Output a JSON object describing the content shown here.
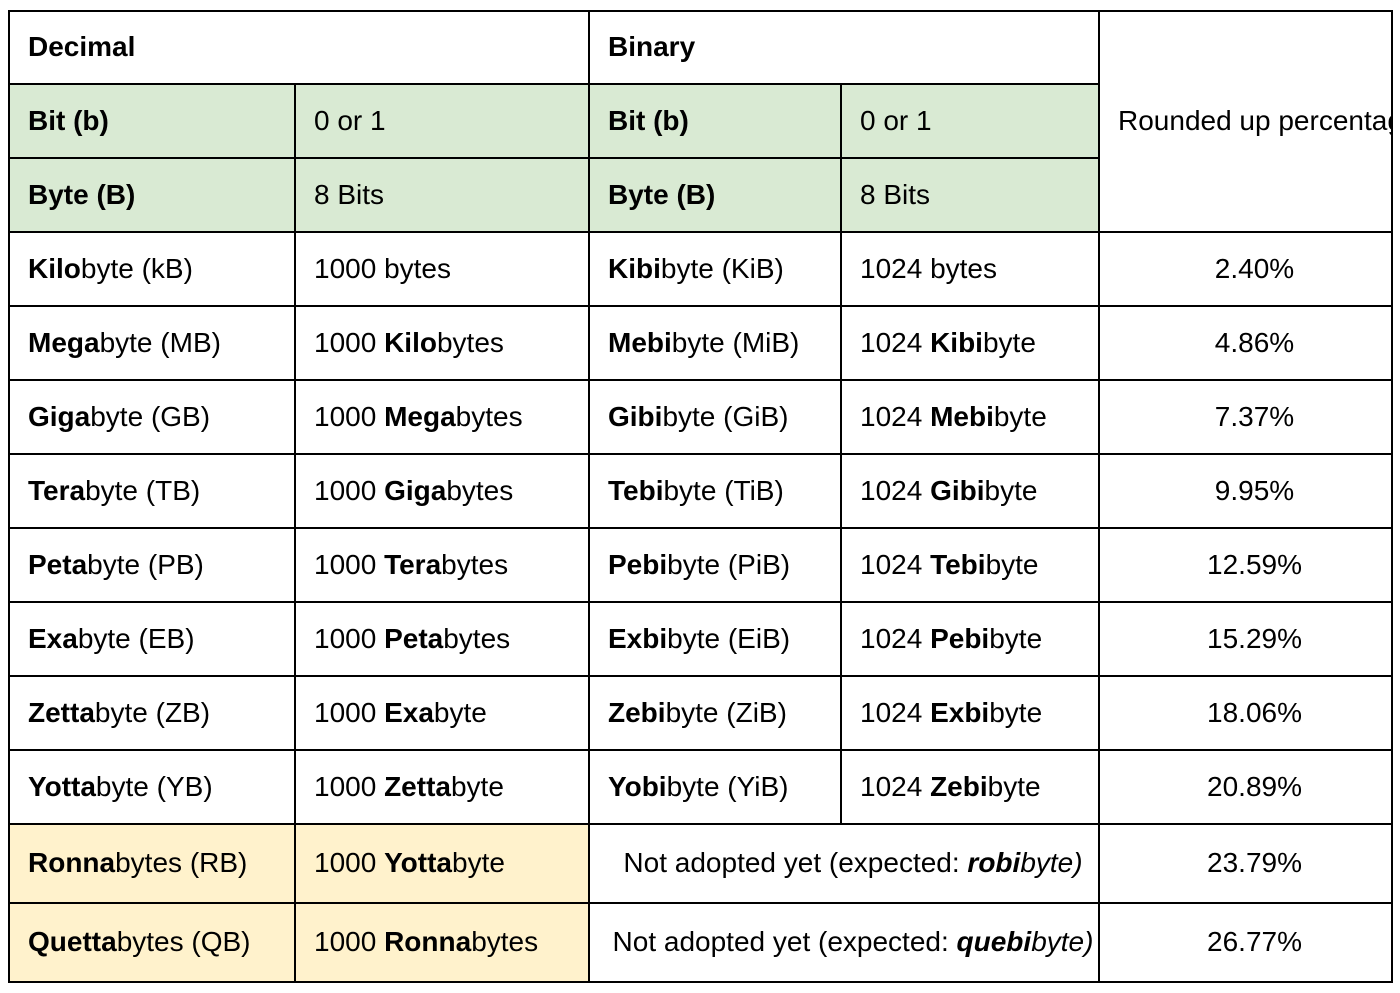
{
  "headers": {
    "decimal": "Decimal",
    "binary": "Binary",
    "difference": "Rounded up percentage value for the difference between decimal and binary values"
  },
  "basics": [
    {
      "dec_name": "Bit (b)",
      "dec_value": "0 or 1",
      "bin_name": "Bit (b)",
      "bin_value": "0 or 1"
    },
    {
      "dec_name": "Byte (B)",
      "dec_value": "8 Bits",
      "bin_name": "Byte (B)",
      "bin_value": "8 Bits"
    }
  ],
  "rows": [
    {
      "dec_prefix": "Kilo",
      "dec_suffix": "byte",
      "dec_abbr": " (kB)",
      "dec_val_num": "1000 bytes",
      "dec_val_prefix": "",
      "dec_val_suffix": "",
      "bin_prefix": "Kibi",
      "bin_suffix": "byte",
      "bin_abbr": " (KiB)",
      "bin_val_num": "1024 bytes",
      "bin_val_prefix": "",
      "bin_val_suffix": "",
      "diff": "2.40%"
    },
    {
      "dec_prefix": "Mega",
      "dec_suffix": "byte",
      "dec_abbr": " (MB)",
      "dec_val_num": "1000 ",
      "dec_val_prefix": "Kilo",
      "dec_val_suffix": "bytes",
      "bin_prefix": "Mebi",
      "bin_suffix": "byte",
      "bin_abbr": " (MiB)",
      "bin_val_num": "1024 ",
      "bin_val_prefix": "Kibi",
      "bin_val_suffix": "byte",
      "diff": "4.86%"
    },
    {
      "dec_prefix": "Giga",
      "dec_suffix": "byte",
      "dec_abbr": " (GB)",
      "dec_val_num": "1000 ",
      "dec_val_prefix": "Mega",
      "dec_val_suffix": "bytes",
      "bin_prefix": "Gibi",
      "bin_suffix": "byte",
      "bin_abbr": " (GiB)",
      "bin_val_num": "1024 ",
      "bin_val_prefix": "Mebi",
      "bin_val_suffix": "byte",
      "diff": "7.37%"
    },
    {
      "dec_prefix": "Tera",
      "dec_suffix": "byte",
      "dec_abbr": " (TB)",
      "dec_val_num": "1000 ",
      "dec_val_prefix": "Giga",
      "dec_val_suffix": "bytes",
      "bin_prefix": "Tebi",
      "bin_suffix": "byte",
      "bin_abbr": " (TiB)",
      "bin_val_num": "1024 ",
      "bin_val_prefix": "Gibi",
      "bin_val_suffix": "byte",
      "diff": "9.95%"
    },
    {
      "dec_prefix": "Peta",
      "dec_suffix": "byte",
      "dec_abbr": " (PB)",
      "dec_val_num": "1000 ",
      "dec_val_prefix": "Tera",
      "dec_val_suffix": "bytes",
      "bin_prefix": "Pebi",
      "bin_suffix": "byte",
      "bin_abbr": " (PiB)",
      "bin_val_num": "1024 ",
      "bin_val_prefix": "Tebi",
      "bin_val_suffix": "byte",
      "diff": "12.59%"
    },
    {
      "dec_prefix": "Exa",
      "dec_suffix": "byte",
      "dec_abbr": " (EB)",
      "dec_val_num": "1000 ",
      "dec_val_prefix": "Peta",
      "dec_val_suffix": "bytes",
      "bin_prefix": "Exbi",
      "bin_suffix": "byte",
      "bin_abbr": " (EiB)",
      "bin_val_num": "1024 ",
      "bin_val_prefix": "Pebi",
      "bin_val_suffix": "byte",
      "diff": "15.29%"
    },
    {
      "dec_prefix": "Zetta",
      "dec_suffix": "byte",
      "dec_abbr": " (ZB)",
      "dec_val_num": "1000 ",
      "dec_val_prefix": "Exa",
      "dec_val_suffix": "byte",
      "bin_prefix": "Zebi",
      "bin_suffix": "byte",
      "bin_abbr": " (ZiB)",
      "bin_val_num": "1024 ",
      "bin_val_prefix": "Exbi",
      "bin_val_suffix": "byte",
      "diff": "18.06%"
    },
    {
      "dec_prefix": "Yotta",
      "dec_suffix": "byte",
      "dec_abbr": " (YB)",
      "dec_val_num": "1000 ",
      "dec_val_prefix": "Zetta",
      "dec_val_suffix": "byte",
      "bin_prefix": "Yobi",
      "bin_suffix": "byte",
      "bin_abbr": " (YiB)",
      "bin_val_num": "1024 ",
      "bin_val_prefix": "Zebi",
      "bin_val_suffix": "byte",
      "diff": "20.89%"
    }
  ],
  "new_rows": [
    {
      "dec_prefix": "Ronna",
      "dec_suffix": "bytes",
      "dec_abbr": " (RB)",
      "dec_val_num": "1000 ",
      "dec_val_prefix": "Yotta",
      "dec_val_suffix": "byte",
      "note_pre": "Not adopted yet (expected: ",
      "note_bold": "robi",
      "note_post": "byte)",
      "diff": "23.79%"
    },
    {
      "dec_prefix": "Quetta",
      "dec_suffix": "bytes",
      "dec_abbr": " (QB)",
      "dec_val_num": "1000 ",
      "dec_val_prefix": "Ronna",
      "dec_val_suffix": "bytes",
      "note_pre": "Not adopted yet (expected: ",
      "note_bold": "quebi",
      "note_post": "byte)",
      "diff": "26.77%"
    }
  ],
  "colors": {
    "basics_fill": "#d9ead3",
    "new_fill": "#fff2cc",
    "border": "#000000"
  }
}
